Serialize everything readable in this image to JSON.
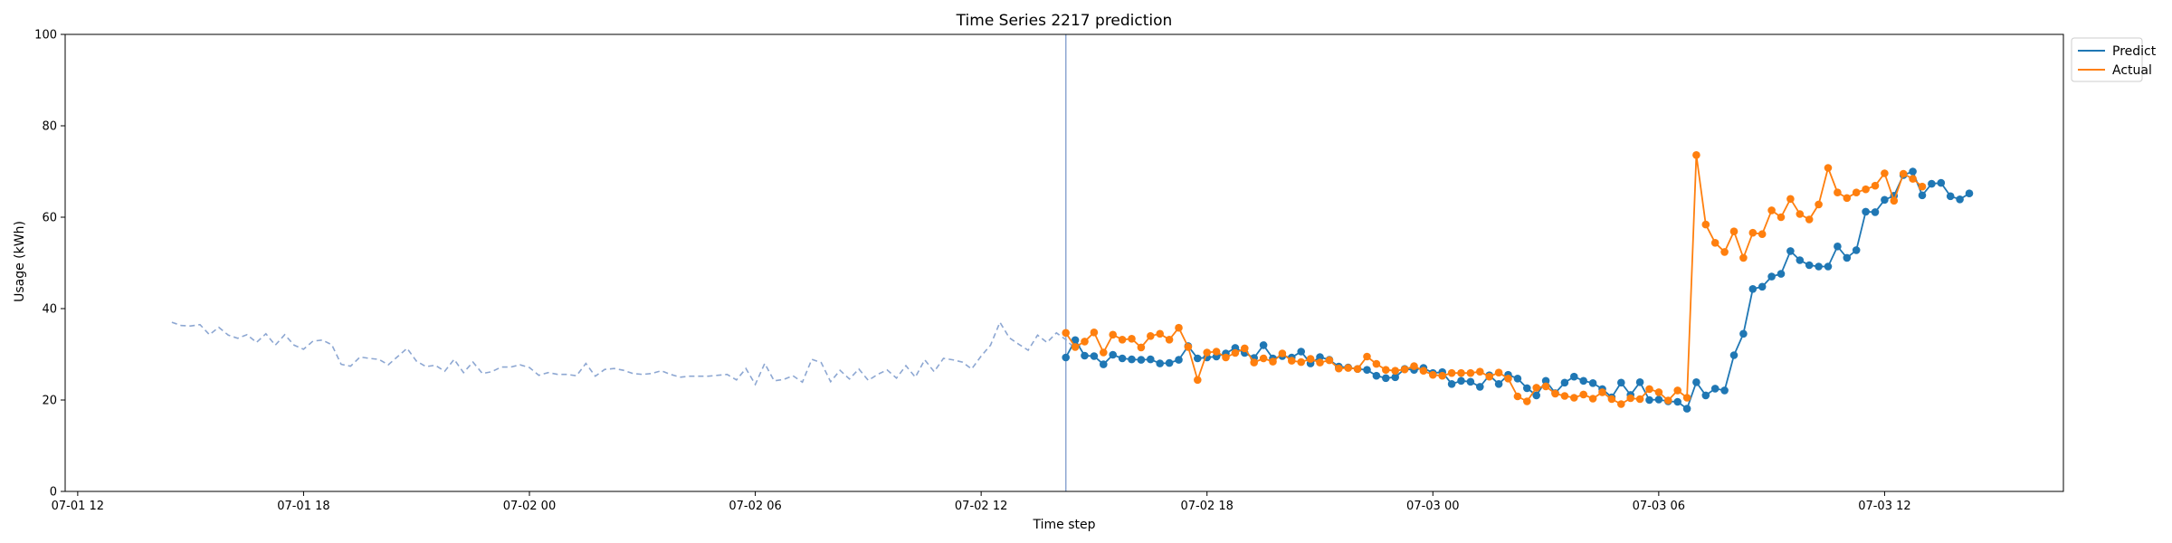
{
  "chart_data": {
    "type": "line",
    "title": "Time Series 2217 prediction",
    "xlabel": "Time step",
    "ylabel": "Usage (kWh)",
    "ylim": [
      0,
      100
    ],
    "xlim": [
      "2025-07-01 11:40",
      "2025-07-03 16:45"
    ],
    "x_tick_labels": [
      "07-01 12",
      "07-01 18",
      "07-02 00",
      "07-02 06",
      "07-02 12",
      "07-02 18",
      "07-03 00",
      "07-03 06",
      "07-03 12"
    ],
    "y_tick_labels": [
      "0",
      "20",
      "40",
      "60",
      "80",
      "100"
    ],
    "grid": false,
    "legend_position": "upper-right-outside",
    "forecast_start": "2025-07-02 14:15",
    "history": {
      "start": "2025-07-01 14:30",
      "step_minutes": 15,
      "color": "#8da7d2",
      "values": [
        37,
        36.3,
        36.2,
        36.5,
        34.3,
        35.9,
        34.2,
        33.5,
        34.3,
        32.6,
        34.5,
        32,
        34.3,
        32,
        31.1,
        32.9,
        33.1,
        32.1,
        27.8,
        27.4,
        29.4,
        29.1,
        28.9,
        27.7,
        29.5,
        31.3,
        28.5,
        27.3,
        27.6,
        26.3,
        28.9,
        26,
        28.3,
        25.8,
        26.2,
        27.2,
        27.2,
        27.7,
        27.1,
        25.4,
        26,
        25.6,
        25.6,
        25.3,
        28,
        25.2,
        26.7,
        26.9,
        26.5,
        25.8,
        25.6,
        25.8,
        26.4,
        25.6,
        25,
        25.2,
        25.2,
        25.2,
        25.4,
        25.6,
        24.4,
        26.9,
        23.4,
        28,
        24.2,
        24.5,
        25.3,
        23.9,
        28.9,
        28.2,
        24,
        26.5,
        24.6,
        26.8,
        24.3,
        25.6,
        26.6,
        24.8,
        27.5,
        25,
        28.8,
        26.2,
        29.1,
        28.8,
        28.3,
        26.8,
        29.6,
        32,
        37,
        33.6,
        32.2,
        30.9,
        34.2,
        32.6,
        34.7,
        33.2,
        31.2,
        32.6
      ]
    },
    "series": [
      {
        "name": "Predict",
        "color": "#1f77b4",
        "start": "2025-07-02 14:15",
        "step_minutes": 15,
        "values": [
          29.3,
          33.1,
          29.7,
          29.6,
          27.8,
          29.9,
          29.1,
          28.9,
          28.8,
          28.9,
          28,
          28.1,
          28.8,
          31.8,
          29.1,
          29.3,
          29.5,
          30.2,
          31.4,
          30.3,
          29.2,
          32,
          29.1,
          29.6,
          29.3,
          30.6,
          28,
          29.4,
          28.8,
          27.3,
          27.1,
          26.8,
          26.6,
          25.3,
          24.8,
          25,
          26.8,
          26.6,
          27,
          25.9,
          26.1,
          23.5,
          24.2,
          24,
          22.9,
          25.4,
          23.5,
          25.5,
          24.7,
          22.6,
          21,
          24.2,
          21.5,
          23.8,
          25.1,
          24.2,
          23.7,
          22.4,
          20.6,
          23.8,
          21.1,
          23.9,
          20,
          20.1,
          19.7,
          19.6,
          18.1,
          23.9,
          21,
          22.5,
          22.1,
          29.8,
          34.5,
          44.3,
          44.8,
          47,
          47.6,
          52.6,
          50.6,
          49.5,
          49.2,
          49.2,
          53.6,
          51.1,
          52.8,
          61.2,
          61.1,
          63.8,
          64.7,
          69.2,
          70,
          64.8,
          67.3,
          67.5,
          64.6,
          63.9,
          65.2
        ]
      },
      {
        "name": "Actual",
        "color": "#ff7f0e",
        "start": "2025-07-02 14:15",
        "step_minutes": 15,
        "values": [
          34.7,
          31.6,
          32.8,
          34.8,
          30.4,
          34.3,
          33.2,
          33.4,
          31.5,
          34,
          34.5,
          33.2,
          35.8,
          31.6,
          24.4,
          30.4,
          30.6,
          29.3,
          30.3,
          31.3,
          28.2,
          29.1,
          28.4,
          30.2,
          28.6,
          28.3,
          29,
          28.2,
          28.7,
          26.9,
          27,
          26.8,
          29.5,
          27.9,
          26.6,
          26.4,
          26.7,
          27.4,
          26.4,
          25.5,
          25.3,
          25.9,
          25.9,
          25.9,
          26.2,
          25.1,
          26,
          24.7,
          20.8,
          19.7,
          22.7,
          23,
          21.4,
          20.9,
          20.5,
          21.2,
          20.3,
          21.7,
          20.2,
          19.1,
          20.4,
          20.2,
          22.4,
          21.7,
          19.9,
          22.1,
          20.5,
          73.6,
          58.4,
          54.4,
          52.4,
          56.9,
          51.1,
          56.6,
          56.3,
          61.5,
          60,
          64,
          60.7,
          59.5,
          62.8,
          70.8,
          65.4,
          64.2,
          65.4,
          66.1,
          66.9,
          69.6,
          63.6,
          69.5,
          68.4,
          66.7
        ]
      }
    ]
  }
}
